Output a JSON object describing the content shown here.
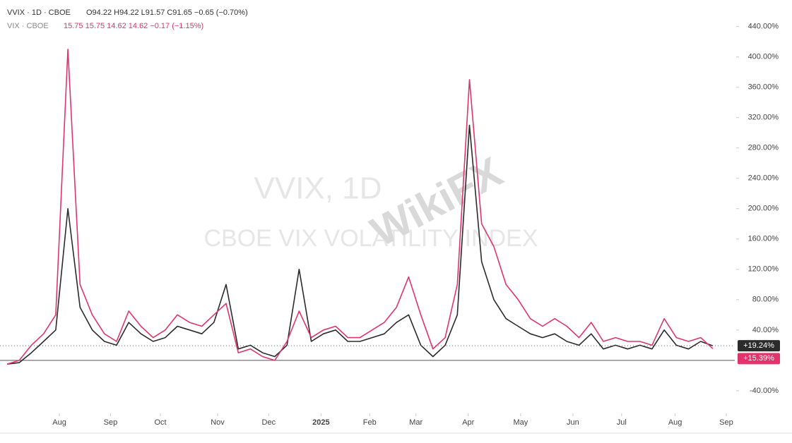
{
  "chart_data": {
    "type": "line",
    "watermark_title": "VVIX, 1D",
    "watermark_subtitle": "CBOE VIX VOLATILITY INDEX",
    "watermark_brand": "WikiFX",
    "x": [
      0,
      1,
      2,
      3,
      4,
      5,
      6,
      7,
      8,
      9,
      10,
      11,
      12,
      13,
      14,
      15,
      16,
      17,
      18,
      19,
      20,
      21,
      22,
      23,
      24,
      25,
      26,
      27,
      28,
      29,
      30,
      31,
      32,
      33,
      34,
      35,
      36,
      37,
      38,
      39,
      40,
      41,
      42,
      43,
      44,
      45,
      46,
      47,
      48,
      49,
      50,
      51,
      52,
      53,
      54,
      55,
      56,
      57,
      58
    ],
    "xlim": [
      0,
      59.8
    ],
    "xticks": [
      {
        "value": 4.3,
        "label": "Aug"
      },
      {
        "value": 8.5,
        "label": "Sep"
      },
      {
        "value": 12.6,
        "label": "Oct"
      },
      {
        "value": 17.3,
        "label": "Nov"
      },
      {
        "value": 21.5,
        "label": "Dec"
      },
      {
        "value": 25.8,
        "label": "2025"
      },
      {
        "value": 29.8,
        "label": "Feb"
      },
      {
        "value": 33.6,
        "label": "Mar"
      },
      {
        "value": 37.9,
        "label": "Apr"
      },
      {
        "value": 42.2,
        "label": "May"
      },
      {
        "value": 46.5,
        "label": "Jun"
      },
      {
        "value": 50.5,
        "label": "Jul"
      },
      {
        "value": 54.9,
        "label": "Aug"
      },
      {
        "value": 59.1,
        "label": "Sep"
      }
    ],
    "ylim": [
      -68,
      475
    ],
    "yticks": [
      {
        "value": -40,
        "label": "-40.00%"
      },
      {
        "value": 40,
        "label": "40.00%"
      },
      {
        "value": 80,
        "label": "80.00%"
      },
      {
        "value": 120,
        "label": "120.00%"
      },
      {
        "value": 160,
        "label": "160.00%"
      },
      {
        "value": 200,
        "label": "200.00%"
      },
      {
        "value": 240,
        "label": "240.00%"
      },
      {
        "value": 280,
        "label": "280.00%"
      },
      {
        "value": 320,
        "label": "320.00%"
      },
      {
        "value": 360,
        "label": "360.00%"
      },
      {
        "value": 400,
        "label": "400.00%"
      },
      {
        "value": 440,
        "label": "440.00%"
      }
    ],
    "series": [
      {
        "name": "VVIX · 1D · CBOE",
        "info": "O94.22 H94.22 L91.57 C91.65 −0.65 (−0.70%)",
        "color": "#2b2b2b",
        "values": [
          -5,
          -3,
          10,
          25,
          40,
          200,
          70,
          40,
          25,
          20,
          50,
          35,
          25,
          30,
          45,
          40,
          35,
          50,
          100,
          15,
          20,
          10,
          5,
          20,
          120,
          25,
          35,
          40,
          25,
          25,
          30,
          35,
          50,
          60,
          20,
          5,
          20,
          60,
          310,
          130,
          80,
          55,
          45,
          35,
          30,
          35,
          25,
          20,
          35,
          15,
          20,
          15,
          20,
          15,
          40,
          20,
          15,
          25,
          19.24
        ],
        "value_labels": [
          null,
          null,
          null,
          null,
          null,
          null,
          null,
          null,
          null,
          null,
          null,
          null,
          null,
          null,
          null,
          null,
          null,
          null,
          null,
          null,
          null,
          null,
          null,
          null,
          null,
          null,
          null,
          null,
          null,
          null,
          null,
          null,
          null,
          null,
          null,
          null,
          null,
          null,
          null,
          null,
          null,
          null,
          null,
          null,
          null,
          null,
          null,
          null,
          null,
          null,
          null,
          null,
          null,
          null,
          null,
          null,
          null,
          null,
          "+19.24%"
        ]
      },
      {
        "name": "VIX · CBOE",
        "info": "15.75 15.75 14.62 14.62 −0.17 (−1.15%)",
        "color": "#e0356b",
        "values": [
          -5,
          0,
          20,
          35,
          60,
          410,
          100,
          60,
          35,
          25,
          65,
          45,
          30,
          40,
          60,
          50,
          45,
          60,
          75,
          10,
          15,
          5,
          0,
          25,
          65,
          30,
          40,
          45,
          30,
          30,
          40,
          50,
          70,
          110,
          60,
          15,
          30,
          100,
          370,
          180,
          150,
          100,
          80,
          55,
          45,
          55,
          45,
          30,
          50,
          25,
          30,
          25,
          25,
          20,
          55,
          30,
          25,
          30,
          15.39
        ],
        "value_labels": [
          null,
          null,
          null,
          null,
          null,
          null,
          null,
          null,
          null,
          null,
          null,
          null,
          null,
          null,
          null,
          null,
          null,
          null,
          null,
          null,
          null,
          null,
          null,
          null,
          null,
          null,
          null,
          null,
          null,
          null,
          null,
          null,
          null,
          null,
          null,
          null,
          null,
          null,
          null,
          null,
          null,
          null,
          null,
          null,
          null,
          null,
          null,
          null,
          null,
          null,
          null,
          null,
          null,
          null,
          null,
          null,
          null,
          null,
          "+15.39%"
        ]
      }
    ]
  }
}
